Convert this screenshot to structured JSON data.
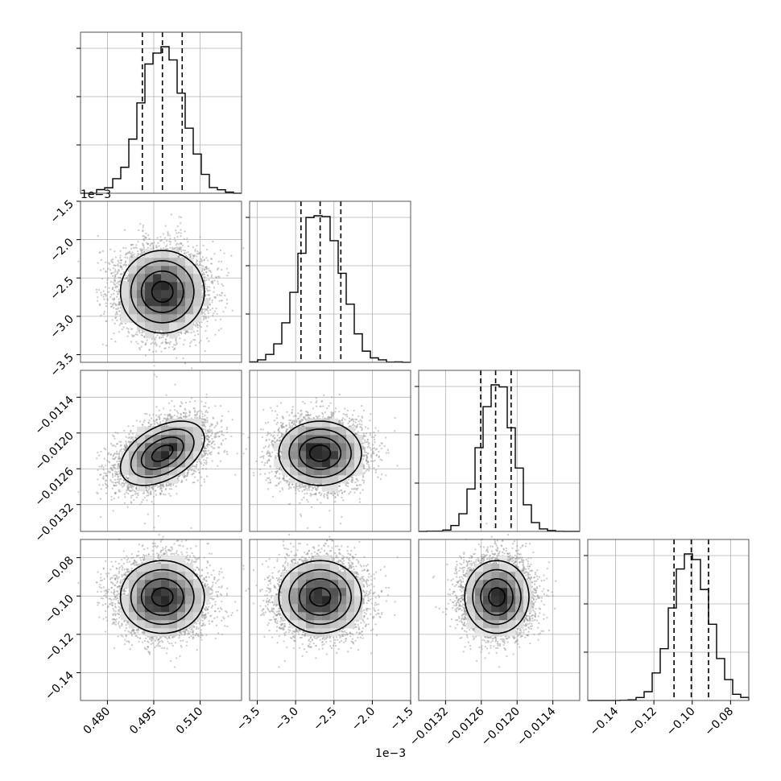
{
  "chart_data": {
    "type": "corner",
    "num_params": 4,
    "grid": true,
    "xlabel": "",
    "ylabel": "",
    "title": "",
    "params": [
      {
        "mean": 0.4978,
        "std": 0.0068,
        "range": [
          0.4713,
          0.5234
        ],
        "ticks": [
          0.48,
          0.495,
          0.51
        ],
        "tick_labels": [
          "0.480",
          "0.495",
          "0.510"
        ]
      },
      {
        "mean": -2.68,
        "std": 0.27,
        "range": [
          -3.6,
          -1.5
        ],
        "ticks": [
          -3.5,
          -3.0,
          -2.5,
          -2.0,
          -1.5
        ],
        "tick_labels": [
          "−3.5",
          "−3.0",
          "−2.5",
          "−2.0",
          "−1.5"
        ],
        "offset_label": "1e−3"
      },
      {
        "mean": -0.01234,
        "std": 0.00027,
        "range": [
          -0.01365,
          -0.01095
        ],
        "ticks": [
          -0.0132,
          -0.0126,
          -0.012,
          -0.0114
        ],
        "tick_labels": [
          "−0.0132",
          "−0.0126",
          "−0.0120",
          "−0.0114"
        ]
      },
      {
        "mean": -0.1005,
        "std": 0.0095,
        "range": [
          -0.1545,
          -0.0705
        ],
        "ticks": [
          -0.14,
          -0.12,
          -0.1,
          -0.08
        ],
        "tick_labels": [
          "−0.14",
          "−0.12",
          "−0.10",
          "−0.08"
        ]
      }
    ],
    "histograms": [
      {
        "param": 0,
        "quantiles": [
          0.4913,
          0.4978,
          0.5042
        ]
      },
      {
        "param": 1,
        "quantiles": [
          -2.93,
          -2.68,
          -2.41
        ]
      },
      {
        "param": 2,
        "quantiles": [
          -0.01261,
          -0.01236,
          -0.0121
        ]
      },
      {
        "param": 3,
        "quantiles": [
          -0.1095,
          -0.1005,
          -0.0915
        ]
      }
    ],
    "correlations": {
      "1-0": 0.0,
      "2-0": 0.45,
      "2-1": 0.0,
      "3-0": 0.0,
      "3-1": 0.0,
      "3-2": 0.0
    },
    "contour_levels": [
      0.118,
      0.393,
      0.675,
      0.864
    ],
    "colors": {
      "hist": "#000000",
      "density": "#000000",
      "scatter": "#9a9a9a",
      "grid": "#b0b0b0"
    }
  }
}
